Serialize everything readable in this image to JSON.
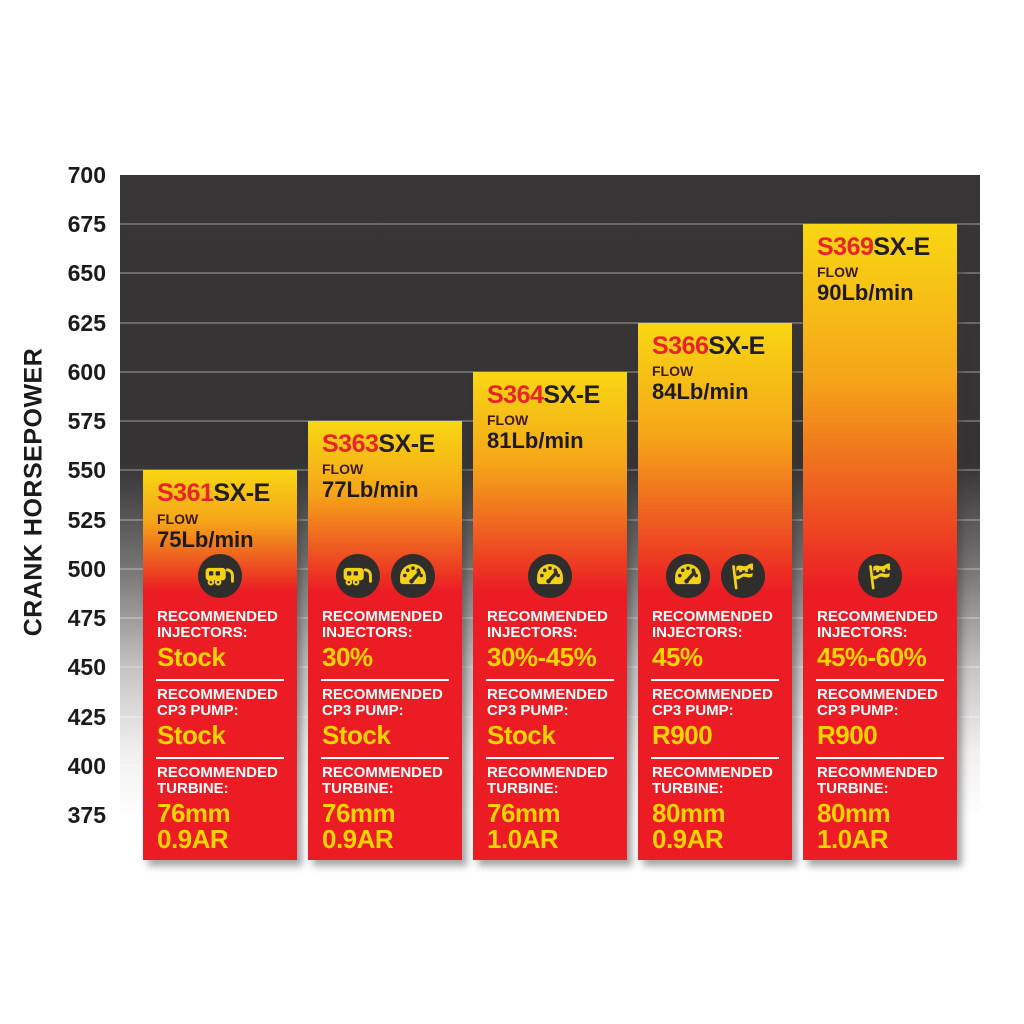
{
  "chart_data": {
    "type": "bar",
    "title": "",
    "xlabel": "",
    "ylabel": "CRANK HORSEPOWER",
    "ylim": [
      375,
      700
    ],
    "yticks": [
      700,
      675,
      650,
      625,
      600,
      575,
      550,
      525,
      500,
      475,
      450,
      425,
      400,
      375
    ],
    "grid": "horizontal",
    "legend": "none",
    "categories": [
      "S361SX-E",
      "S363SX-E",
      "S364SX-E",
      "S366SX-E",
      "S369SX-E"
    ],
    "values": [
      550,
      575,
      600,
      625,
      675
    ]
  },
  "colors": {
    "plot_background_top": "#353333",
    "bar_yellow_top": "#f8d713",
    "bar_red": "#eb1c24",
    "model_prefix_red": "#e8242b",
    "value_yellow": "#ffd400",
    "label_white": "#ffffff",
    "icon_circle_dark": "#302e2d"
  },
  "bars": [
    {
      "model_prefix": "S361",
      "model_suffix": "SX-E",
      "flow_label": "FLOW",
      "flow_value": "75Lb/min",
      "crank_horsepower": 550,
      "icons": [
        "trailer-icon"
      ],
      "injectors_label": "RECOMMENDED INJECTORS:",
      "injectors_value": "Stock",
      "cp3_label": "RECOMMENDED CP3 PUMP:",
      "cp3_value": "Stock",
      "turbine_label": "RECOMMENDED TURBINE:",
      "turbine_value_line1": "76mm",
      "turbine_value_line2": "0.9AR"
    },
    {
      "model_prefix": "S363",
      "model_suffix": "SX-E",
      "flow_label": "FLOW",
      "flow_value": "77Lb/min",
      "crank_horsepower": 575,
      "icons": [
        "trailer-icon",
        "gauge-icon"
      ],
      "injectors_label": "RECOMMENDED INJECTORS:",
      "injectors_value": "30%",
      "cp3_label": "RECOMMENDED CP3 PUMP:",
      "cp3_value": "Stock",
      "turbine_label": "RECOMMENDED TURBINE:",
      "turbine_value_line1": "76mm",
      "turbine_value_line2": "0.9AR"
    },
    {
      "model_prefix": "S364",
      "model_suffix": "SX-E",
      "flow_label": "FLOW",
      "flow_value": "81Lb/min",
      "crank_horsepower": 600,
      "icons": [
        "gauge-icon"
      ],
      "injectors_label": "RECOMMENDED INJECTORS:",
      "injectors_value": "30%-45%",
      "cp3_label": "RECOMMENDED CP3 PUMP:",
      "cp3_value": "Stock",
      "turbine_label": "RECOMMENDED TURBINE:",
      "turbine_value_line1": "76mm",
      "turbine_value_line2": "1.0AR"
    },
    {
      "model_prefix": "S366",
      "model_suffix": "SX-E",
      "flow_label": "FLOW",
      "flow_value": "84Lb/min",
      "crank_horsepower": 625,
      "icons": [
        "gauge-icon",
        "flag-icon"
      ],
      "injectors_label": "RECOMMENDED INJECTORS:",
      "injectors_value": "45%",
      "cp3_label": "RECOMMENDED CP3 PUMP:",
      "cp3_value": "R900",
      "turbine_label": "RECOMMENDED TURBINE:",
      "turbine_value_line1": "80mm",
      "turbine_value_line2": "0.9AR"
    },
    {
      "model_prefix": "S369",
      "model_suffix": "SX-E",
      "flow_label": "FLOW",
      "flow_value": "90Lb/min",
      "crank_horsepower": 675,
      "icons": [
        "flag-icon"
      ],
      "injectors_label": "RECOMMENDED INJECTORS:",
      "injectors_value": "45%-60%",
      "cp3_label": "RECOMMENDED CP3 PUMP:",
      "cp3_value": "R900",
      "turbine_label": "RECOMMENDED TURBINE:",
      "turbine_value_line1": "80mm",
      "turbine_value_line2": "1.0AR"
    }
  ]
}
